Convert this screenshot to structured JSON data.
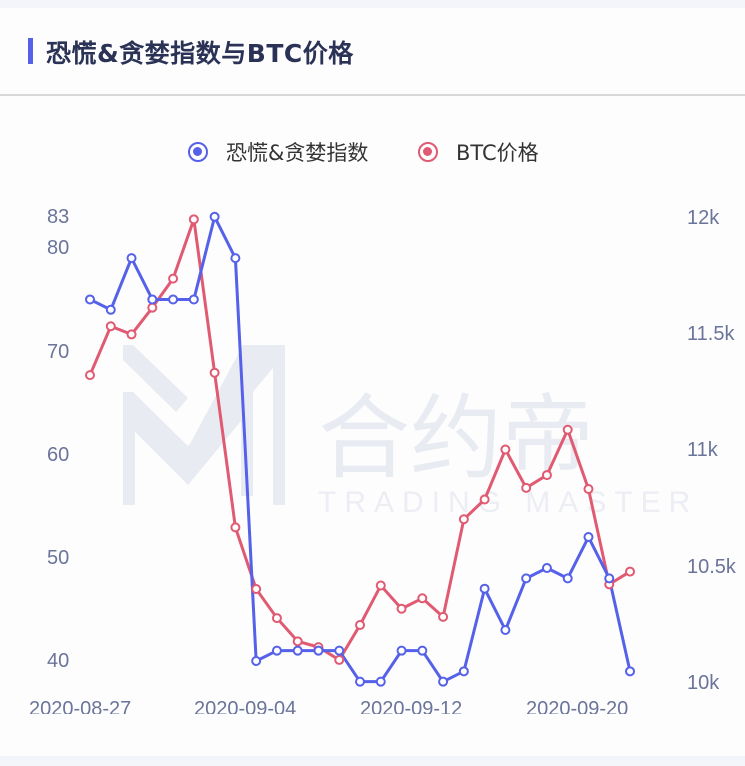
{
  "header": {
    "title": "恐慌&贪婪指数与BTC价格"
  },
  "legend": [
    {
      "label": "恐慌&贪婪指数",
      "color": "#5561e8",
      "icon": "circle-marker-icon"
    },
    {
      "label": "BTC价格",
      "color": "#e05a72",
      "icon": "circle-marker-icon"
    }
  ],
  "axes": {
    "left_ticks": [
      "83",
      "80",
      "70",
      "60",
      "50",
      "40"
    ],
    "right_ticks": [
      "12k",
      "11.5k",
      "11k",
      "10.5k",
      "10k"
    ],
    "x_ticks": [
      "2020-08-27",
      "2020-09-04",
      "2020-09-12",
      "2020-09-20"
    ]
  },
  "watermark": {
    "cn": "合约帝",
    "en": "TRADING MASTER"
  },
  "chart_data": {
    "type": "line",
    "title": "恐慌&贪婪指数与BTC价格",
    "xlabel": "",
    "ylabel": "",
    "x": [
      "2020-08-27",
      "2020-08-28",
      "2020-08-29",
      "2020-08-30",
      "2020-08-31",
      "2020-09-01",
      "2020-09-02",
      "2020-09-03",
      "2020-09-04",
      "2020-09-05",
      "2020-09-06",
      "2020-09-07",
      "2020-09-08",
      "2020-09-09",
      "2020-09-10",
      "2020-09-11",
      "2020-09-12",
      "2020-09-13",
      "2020-09-14",
      "2020-09-15",
      "2020-09-16",
      "2020-09-17",
      "2020-09-18",
      "2020-09-19",
      "2020-09-20",
      "2020-09-21",
      "2020-09-22"
    ],
    "series": [
      {
        "name": "恐慌&贪婪指数",
        "axis": "left",
        "color": "#5561e8",
        "values": [
          75,
          74,
          79,
          75,
          75,
          75,
          83,
          79,
          40,
          41,
          41,
          41,
          41,
          38,
          38,
          41,
          41,
          38,
          39,
          47,
          43,
          48,
          49,
          48,
          52,
          48,
          39
        ]
      },
      {
        "name": "BTC价格",
        "axis": "right",
        "color": "#e05a72",
        "values": [
          11320,
          11530,
          11495,
          11610,
          11735,
          11990,
          11330,
          10665,
          10400,
          10275,
          10175,
          10150,
          10095,
          10245,
          10415,
          10315,
          10360,
          10280,
          10700,
          10785,
          11000,
          10835,
          10890,
          11085,
          10830,
          10420,
          10475
        ]
      }
    ],
    "left_ylim": [
      38,
      83
    ],
    "right_ylim": [
      10000,
      12000
    ],
    "left_ticks": [
      40,
      50,
      60,
      70,
      80,
      83
    ],
    "right_ticks": [
      10000,
      10500,
      11000,
      11500,
      12000
    ],
    "grid": false,
    "legend_position": "top"
  }
}
